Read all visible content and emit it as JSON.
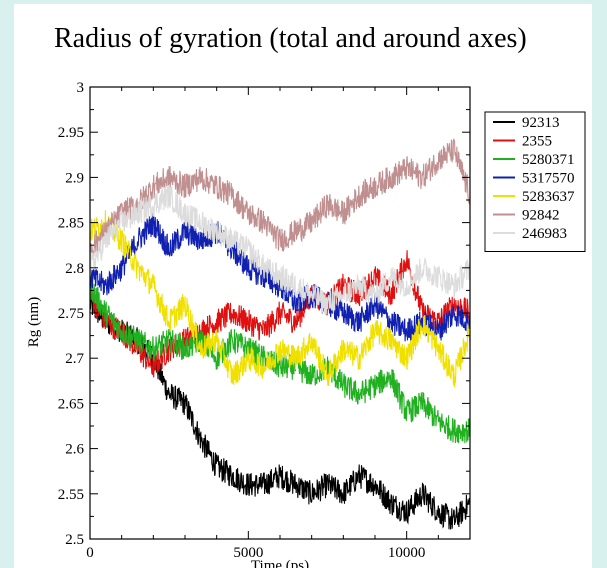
{
  "chart_data": {
    "type": "line",
    "title": "Radius of gyration (total and around axes)",
    "xlabel": "Time (ps)",
    "ylabel": "Rg (nm)",
    "xlim": [
      0,
      12000
    ],
    "ylim": [
      2.5,
      3.0
    ],
    "x_ticks": [
      "0",
      "5000",
      "10000"
    ],
    "y_ticks": [
      "2.5",
      "2.55",
      "2.6",
      "2.65",
      "2.7",
      "2.75",
      "2.8",
      "2.85",
      "2.9",
      "2.95",
      "3"
    ],
    "legend_position": "right",
    "grid": false,
    "series": [
      {
        "name": "92313",
        "color": "#000000",
        "x": [
          0,
          500,
          1000,
          1500,
          2000,
          2500,
          3000,
          3500,
          4000,
          4500,
          5000,
          5500,
          6000,
          6500,
          7000,
          7500,
          8000,
          8500,
          9000,
          9500,
          10000,
          10500,
          11000,
          11500,
          12000
        ],
        "y": [
          2.76,
          2.74,
          2.73,
          2.72,
          2.7,
          2.66,
          2.65,
          2.61,
          2.58,
          2.57,
          2.56,
          2.56,
          2.57,
          2.56,
          2.55,
          2.56,
          2.55,
          2.57,
          2.56,
          2.54,
          2.53,
          2.55,
          2.53,
          2.52,
          2.54
        ]
      },
      {
        "name": "2355",
        "color": "#e01010",
        "x": [
          0,
          500,
          1000,
          1500,
          2000,
          2500,
          3000,
          3500,
          4000,
          4500,
          5000,
          5500,
          6000,
          6500,
          7000,
          7500,
          8000,
          8500,
          9000,
          9500,
          10000,
          10500,
          11000,
          11500,
          12000
        ],
        "y": [
          2.77,
          2.74,
          2.73,
          2.71,
          2.69,
          2.71,
          2.72,
          2.73,
          2.74,
          2.75,
          2.74,
          2.73,
          2.75,
          2.74,
          2.77,
          2.76,
          2.78,
          2.77,
          2.79,
          2.77,
          2.81,
          2.75,
          2.74,
          2.76,
          2.75
        ]
      },
      {
        "name": "5280371",
        "color": "#20b020",
        "x": [
          0,
          500,
          1000,
          1500,
          2000,
          2500,
          3000,
          3500,
          4000,
          4500,
          5000,
          5500,
          6000,
          6500,
          7000,
          7500,
          8000,
          8500,
          9000,
          9500,
          10000,
          10500,
          11000,
          11500,
          12000
        ],
        "y": [
          2.78,
          2.75,
          2.73,
          2.72,
          2.71,
          2.72,
          2.71,
          2.72,
          2.7,
          2.72,
          2.71,
          2.7,
          2.69,
          2.69,
          2.68,
          2.69,
          2.67,
          2.66,
          2.67,
          2.68,
          2.64,
          2.65,
          2.63,
          2.62,
          2.62
        ]
      },
      {
        "name": "5317570",
        "color": "#1020b0",
        "x": [
          0,
          500,
          1000,
          1500,
          2000,
          2500,
          3000,
          3500,
          4000,
          4500,
          5000,
          5500,
          6000,
          6500,
          7000,
          7500,
          8000,
          8500,
          9000,
          9500,
          10000,
          10500,
          11000,
          11500,
          12000
        ],
        "y": [
          2.79,
          2.78,
          2.8,
          2.83,
          2.85,
          2.82,
          2.84,
          2.83,
          2.84,
          2.82,
          2.8,
          2.79,
          2.78,
          2.76,
          2.77,
          2.76,
          2.75,
          2.74,
          2.76,
          2.74,
          2.73,
          2.74,
          2.73,
          2.75,
          2.74
        ]
      },
      {
        "name": "5283637",
        "color": "#f0e000",
        "x": [
          0,
          500,
          1000,
          1500,
          2000,
          2500,
          3000,
          3500,
          4000,
          4500,
          5000,
          5500,
          6000,
          6500,
          7000,
          7500,
          8000,
          8500,
          9000,
          9500,
          10000,
          10500,
          11000,
          11500,
          12000
        ],
        "y": [
          2.84,
          2.85,
          2.83,
          2.8,
          2.78,
          2.74,
          2.76,
          2.71,
          2.72,
          2.68,
          2.7,
          2.69,
          2.71,
          2.7,
          2.72,
          2.68,
          2.71,
          2.7,
          2.73,
          2.72,
          2.7,
          2.74,
          2.71,
          2.68,
          2.73
        ]
      },
      {
        "name": "92842",
        "color": "#c09090",
        "x": [
          0,
          500,
          1000,
          1500,
          2000,
          2500,
          3000,
          3500,
          4000,
          4500,
          5000,
          5500,
          6000,
          6500,
          7000,
          7500,
          8000,
          8500,
          9000,
          9500,
          10000,
          10500,
          11000,
          11500,
          12000
        ],
        "y": [
          2.82,
          2.84,
          2.86,
          2.87,
          2.89,
          2.9,
          2.89,
          2.9,
          2.89,
          2.88,
          2.86,
          2.85,
          2.83,
          2.84,
          2.85,
          2.87,
          2.86,
          2.88,
          2.89,
          2.9,
          2.91,
          2.9,
          2.92,
          2.93,
          2.88
        ]
      },
      {
        "name": "246983",
        "color": "#dcdcdc",
        "x": [
          0,
          500,
          1000,
          1500,
          2000,
          2500,
          3000,
          3500,
          4000,
          4500,
          5000,
          5500,
          6000,
          6500,
          7000,
          7500,
          8000,
          8500,
          9000,
          9500,
          10000,
          10500,
          11000,
          11500,
          12000
        ],
        "y": [
          2.8,
          2.83,
          2.85,
          2.86,
          2.87,
          2.88,
          2.86,
          2.85,
          2.84,
          2.83,
          2.82,
          2.8,
          2.79,
          2.78,
          2.77,
          2.76,
          2.77,
          2.78,
          2.77,
          2.79,
          2.78,
          2.8,
          2.79,
          2.78,
          2.8
        ]
      }
    ]
  }
}
